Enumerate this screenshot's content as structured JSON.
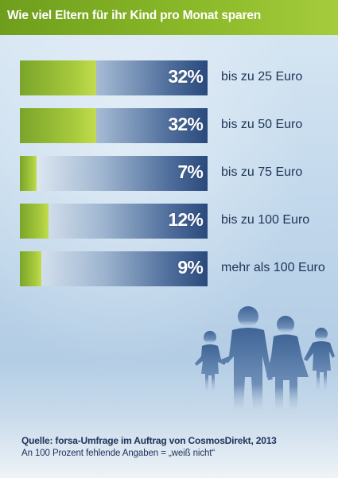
{
  "header": {
    "title": "Wie viel Eltern für ihr Kind pro Monat sparen"
  },
  "chart_data": {
    "type": "bar",
    "orientation": "horizontal",
    "title": "Wie viel Eltern für ihr Kind pro Monat sparen",
    "categories": [
      "bis zu 25 Euro",
      "bis zu 50 Euro",
      "bis zu 75 Euro",
      "bis zu 100 Euro",
      "mehr als 100 Euro"
    ],
    "values": [
      32,
      32,
      7,
      12,
      9
    ],
    "value_labels": [
      "32%",
      "32%",
      "7%",
      "12%",
      "9%"
    ],
    "unit": "%",
    "xlim": [
      0,
      100
    ],
    "grid": false,
    "legend": "none",
    "colors": {
      "fill": "#a7c93c",
      "track_dark": "#2a4a7d",
      "text": "#1e3458",
      "title_bg": "#8cba2a"
    }
  },
  "footer": {
    "source": "Quelle: forsa-Umfrage im Auftrag von CosmosDirekt, 2013",
    "note": "An 100 Prozent fehlende Angaben = „weiß nicht“"
  },
  "illustration": {
    "icon": "family-silhouette-icon"
  }
}
